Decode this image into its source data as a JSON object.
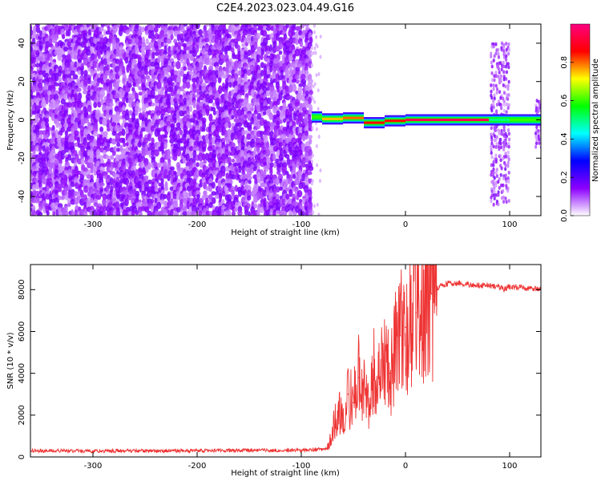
{
  "chart_data": [
    {
      "type": "heatmap",
      "title": "C2E4.2023.023.04.49.G16",
      "xlabel": "Height of straight line (km)",
      "ylabel": "Frequency (Hz)",
      "xlim": [
        -360,
        130
      ],
      "ylim": [
        -50,
        50
      ],
      "x_ticks": [
        -300,
        -200,
        -100,
        0,
        100
      ],
      "y_ticks": [
        -40,
        -20,
        0,
        20,
        40
      ],
      "colorbar": {
        "label": "Normalized spectral amplitude",
        "range": [
          0,
          1
        ],
        "ticks": [
          "0.0",
          "0.2",
          "0.4",
          "0.6",
          "0.8"
        ],
        "colors": [
          "#ffffff",
          "#8c00ff",
          "#0000ff",
          "#00ffff",
          "#00ff00",
          "#ffff00",
          "#ff0000",
          "#ff0080"
        ]
      },
      "noise_region": {
        "x_range": [
          -360,
          -90
        ],
        "color": "#8c00ff"
      },
      "signal_band": {
        "x_range": [
          -90,
          130
        ],
        "center_frequency": 0,
        "peak_amplitude": 0.95,
        "segments": [
          {
            "x": [
              -90,
              -80
            ],
            "freq": 1.5,
            "amplitude": 0.6
          },
          {
            "x": [
              -80,
              -60
            ],
            "freq": 0.5,
            "amplitude": 0.75
          },
          {
            "x": [
              -60,
              -40
            ],
            "freq": 1.0,
            "amplitude": 0.8
          },
          {
            "x": [
              -40,
              -20
            ],
            "freq": -1.5,
            "amplitude": 0.85
          },
          {
            "x": [
              -20,
              0
            ],
            "freq": -0.5,
            "amplitude": 0.85
          },
          {
            "x": [
              0,
              80
            ],
            "freq": 0,
            "amplitude": 0.95
          },
          {
            "x": [
              80,
              100
            ],
            "freq": 0,
            "amplitude": 0.5
          },
          {
            "x": [
              100,
              130
            ],
            "freq": 0,
            "amplitude": 0.6
          }
        ]
      },
      "broadband_bursts": [
        {
          "x": [
            82,
            100
          ],
          "freq_range": [
            -45,
            40
          ]
        },
        {
          "x": [
            125,
            130
          ],
          "freq_range": [
            -15,
            10
          ]
        }
      ]
    },
    {
      "type": "line",
      "xlabel": "Height of straight line (km)",
      "ylabel": "SNR (10 * v/v)",
      "xlim": [
        -360,
        130
      ],
      "ylim": [
        0,
        9200
      ],
      "x_ticks": [
        -300,
        -200,
        -100,
        0,
        100
      ],
      "y_ticks": [
        0,
        2000,
        4000,
        6000,
        8000
      ],
      "color": "#ee3333",
      "x": [
        -360,
        -300,
        -200,
        -100,
        -75,
        -70,
        -65,
        -60,
        -55,
        -50,
        -45,
        -40,
        -35,
        -30,
        -25,
        -20,
        -15,
        -10,
        -5,
        0,
        5,
        10,
        15,
        20,
        25,
        30,
        35,
        40,
        50,
        60,
        70,
        80,
        90,
        95,
        100,
        110,
        120,
        130
      ],
      "y": [
        300,
        280,
        300,
        320,
        400,
        1200,
        2200,
        1800,
        3000,
        2600,
        3800,
        3200,
        2400,
        4400,
        3600,
        4600,
        4000,
        5200,
        5800,
        6200,
        6600,
        6900,
        7200,
        7500,
        7800,
        8050,
        8200,
        8300,
        8300,
        8250,
        8200,
        8200,
        8150,
        8000,
        8150,
        8100,
        8050,
        8050
      ]
    }
  ]
}
